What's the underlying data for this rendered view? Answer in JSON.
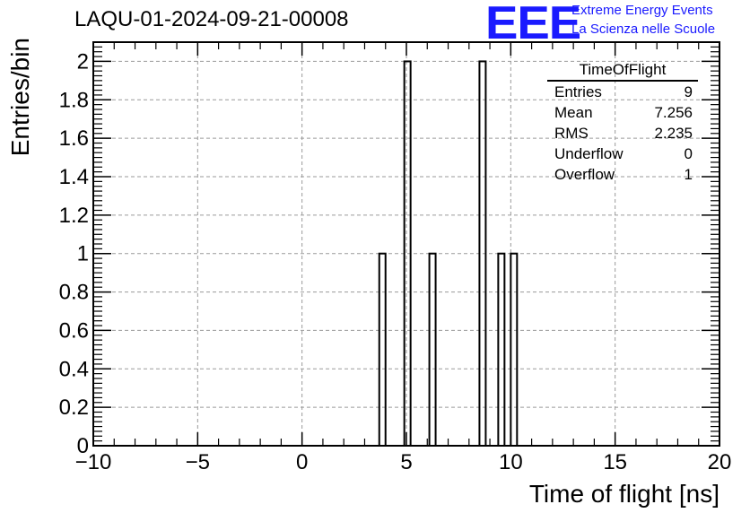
{
  "header": {
    "run_title": "LAQU-01-2024-09-21-00008",
    "logo_text": "EEE",
    "logo_line1": "Extreme Energy Events",
    "logo_line2": "La Scienza nelle Scuole"
  },
  "stats": {
    "title": "TimeOfFlight",
    "rows": [
      {
        "label": "Entries",
        "value": "9"
      },
      {
        "label": "Mean",
        "value": "7.256"
      },
      {
        "label": "RMS",
        "value": "2.235"
      },
      {
        "label": "Underflow",
        "value": "0"
      },
      {
        "label": "Overflow",
        "value": "1"
      }
    ]
  },
  "colors": {
    "logo": "#1a1aff",
    "grid": "#9a9a9a",
    "bars": "#000000"
  },
  "chart_data": {
    "type": "bar",
    "xlabel": "Time of flight [ns]",
    "ylabel": "Entries/bin",
    "xlim": [
      -10,
      20
    ],
    "ylim": [
      0,
      2.1
    ],
    "grid": true,
    "bin_width": 0.3,
    "x_ticks": [
      "−10",
      "−5",
      "0",
      "5",
      "10",
      "15",
      "20"
    ],
    "y_ticks": [
      "0",
      "0.2",
      "0.4",
      "0.6",
      "0.8",
      "1",
      "1.2",
      "1.4",
      "1.6",
      "1.8",
      "2"
    ],
    "bars": [
      {
        "x": 3.7,
        "value": 1
      },
      {
        "x": 4.9,
        "value": 2
      },
      {
        "x": 6.1,
        "value": 1
      },
      {
        "x": 8.5,
        "value": 2
      },
      {
        "x": 9.4,
        "value": 1
      },
      {
        "x": 10.0,
        "value": 1
      }
    ]
  }
}
